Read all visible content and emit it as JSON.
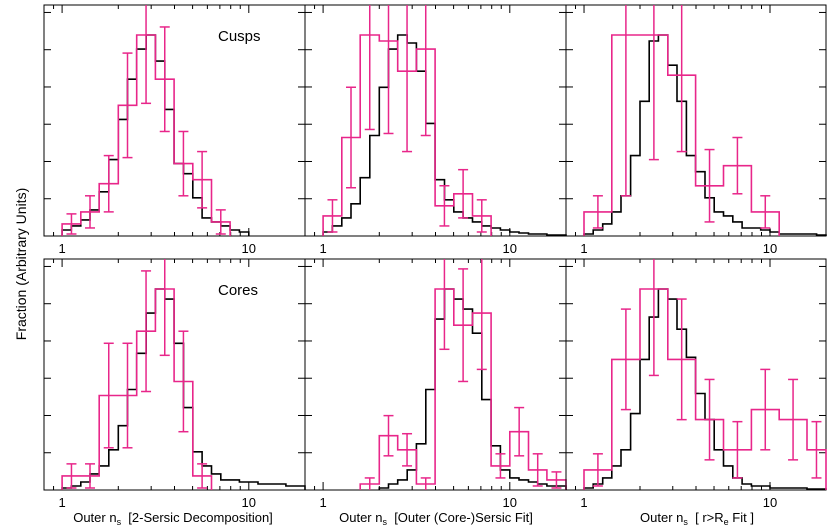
{
  "figure": {
    "ylabel": "Fraction (Arbitrary Units)",
    "row_labels": [
      "Cusps",
      "Cores"
    ],
    "xlabels": [
      {
        "prefix": "Outer n",
        "sub": "s",
        "rest": "  [2-Sersic Decomposition]"
      },
      {
        "prefix": "Outer n",
        "sub": "s",
        "rest": "  [Outer (Core-)Sersic Fit]"
      },
      {
        "prefix": "Outer n",
        "sub": "s",
        "rest": "  [ r>R",
        "sub2": "e",
        "rest2": " Fit ]"
      }
    ]
  },
  "colors": {
    "model": "#000000",
    "observed": "#e8268a"
  },
  "chart_data": [
    {
      "type": "histogram",
      "panel": "cusps-2sersic",
      "label": "Cusps",
      "xscale": "log",
      "xlim": [
        0.8,
        20
      ],
      "ylim": [
        0,
        1
      ],
      "xticks": [
        {
          "value": 1,
          "label": "1"
        },
        {
          "value": 10,
          "label": "10"
        }
      ],
      "series": [
        {
          "name": "model",
          "edges": [
            1.0,
            1.12,
            1.26,
            1.41,
            1.58,
            1.78,
            2.0,
            2.24,
            2.51,
            2.82,
            3.16,
            3.55,
            3.98,
            4.47,
            5.01,
            5.62,
            6.31,
            7.08,
            7.94,
            8.91,
            10.0
          ],
          "values": [
            0.03,
            0.05,
            0.08,
            0.13,
            0.22,
            0.38,
            0.58,
            0.78,
            0.93,
            1.0,
            0.87,
            0.63,
            0.36,
            0.31,
            0.19,
            0.09,
            0.07,
            0.05,
            0.03,
            0.02
          ]
        },
        {
          "name": "observed",
          "edges": [
            1.0,
            1.26,
            1.58,
            2.0,
            2.51,
            3.16,
            3.98,
            5.01,
            6.31,
            7.94
          ],
          "values": [
            0.06,
            0.12,
            0.26,
            0.65,
            1.0,
            0.78,
            0.36,
            0.28,
            0.07
          ],
          "errors": [
            0.05,
            0.08,
            0.14,
            0.26,
            0.34,
            0.26,
            0.16,
            0.14,
            0.06
          ]
        }
      ]
    },
    {
      "type": "histogram",
      "panel": "cusps-outer",
      "label": "",
      "xscale": "log",
      "xlim": [
        0.8,
        20
      ],
      "ylim": [
        0,
        1
      ],
      "xticks": [
        {
          "value": 1,
          "label": "1"
        },
        {
          "value": 10,
          "label": "10"
        }
      ],
      "series": [
        {
          "name": "model",
          "edges": [
            1.0,
            1.12,
            1.26,
            1.41,
            1.58,
            1.78,
            2.0,
            2.24,
            2.51,
            2.82,
            3.16,
            3.55,
            3.98,
            4.47,
            5.01,
            5.62,
            6.31,
            7.08,
            7.94,
            8.91,
            10.0,
            11.2,
            12.6,
            14.1,
            15.8,
            17.8,
            20.0
          ],
          "values": [
            0.02,
            0.05,
            0.09,
            0.16,
            0.29,
            0.5,
            0.74,
            0.93,
            1.0,
            0.96,
            0.82,
            0.56,
            0.28,
            0.18,
            0.12,
            0.09,
            0.07,
            0.05,
            0.04,
            0.03,
            0.02,
            0.015,
            0.01,
            0.01,
            0.005,
            0.005
          ]
        },
        {
          "name": "observed",
          "edges": [
            1.0,
            1.26,
            1.58,
            2.0,
            2.51,
            3.16,
            3.98,
            5.01,
            6.31,
            7.94
          ],
          "values": [
            0.1,
            0.49,
            1.0,
            0.97,
            0.82,
            0.93,
            0.15,
            0.21,
            0.1
          ],
          "errors": [
            0.08,
            0.25,
            0.47,
            0.46,
            0.4,
            0.43,
            0.1,
            0.12,
            0.08
          ]
        }
      ]
    },
    {
      "type": "histogram",
      "panel": "cusps-r-re",
      "label": "",
      "xscale": "log",
      "xlim": [
        0.8,
        20
      ],
      "ylim": [
        0,
        1
      ],
      "xticks": [
        {
          "value": 1,
          "label": "1"
        },
        {
          "value": 10,
          "label": "10"
        }
      ],
      "series": [
        {
          "name": "model",
          "edges": [
            1.0,
            1.12,
            1.26,
            1.41,
            1.58,
            1.78,
            2.0,
            2.24,
            2.51,
            2.82,
            3.16,
            3.55,
            3.98,
            4.47,
            5.01,
            5.62,
            6.31,
            7.08,
            7.94,
            8.91,
            10.0,
            11.2,
            12.6,
            14.1,
            15.8,
            17.8,
            20.0
          ],
          "values": [
            0.01,
            0.03,
            0.06,
            0.12,
            0.2,
            0.4,
            0.67,
            0.97,
            1.0,
            0.85,
            0.67,
            0.4,
            0.32,
            0.19,
            0.12,
            0.1,
            0.07,
            0.04,
            0.04,
            0.03,
            0.02,
            0.01,
            0.01,
            0.01,
            0.01,
            0.005
          ]
        },
        {
          "name": "observed",
          "edges": [
            1.0,
            1.41,
            2.0,
            2.82,
            3.98,
            5.62,
            7.94,
            11.2
          ],
          "values": [
            0.12,
            1.0,
            1.0,
            0.8,
            0.25,
            0.35,
            0.12
          ],
          "errors": [
            0.08,
            0.8,
            0.62,
            0.38,
            0.18,
            0.14,
            0.08
          ]
        }
      ]
    },
    {
      "type": "histogram",
      "panel": "cores-2sersic",
      "label": "Cores",
      "xscale": "log",
      "xlim": [
        0.8,
        20
      ],
      "ylim": [
        0,
        1
      ],
      "xticks": [
        {
          "value": 1,
          "label": "1"
        },
        {
          "value": 10,
          "label": "10"
        }
      ],
      "series": [
        {
          "name": "model",
          "edges": [
            1.0,
            1.12,
            1.26,
            1.41,
            1.58,
            1.78,
            2.0,
            2.24,
            2.51,
            2.82,
            3.16,
            3.55,
            3.98,
            4.47,
            5.01,
            5.62,
            6.31,
            7.08,
            7.94,
            8.91,
            10.0,
            11.2,
            12.6,
            14.1,
            15.8,
            17.8,
            20.0
          ],
          "values": [
            0.01,
            0.02,
            0.04,
            0.08,
            0.12,
            0.2,
            0.32,
            0.5,
            0.68,
            0.88,
            1.0,
            0.95,
            0.73,
            0.41,
            0.19,
            0.12,
            0.08,
            0.05,
            0.05,
            0.04,
            0.04,
            0.03,
            0.03,
            0.03,
            0.02,
            0.02
          ]
        },
        {
          "name": "observed",
          "edges": [
            1.0,
            1.26,
            1.58,
            2.0,
            2.51,
            3.16,
            3.98,
            5.01,
            6.31
          ],
          "values": [
            0.07,
            0.07,
            0.47,
            0.47,
            0.79,
            1.0,
            0.54,
            0.07
          ],
          "errors": [
            0.06,
            0.06,
            0.26,
            0.26,
            0.3,
            0.33,
            0.25,
            0.06
          ]
        }
      ]
    },
    {
      "type": "histogram",
      "panel": "cores-outer",
      "label": "",
      "xscale": "log",
      "xlim": [
        0.8,
        20
      ],
      "ylim": [
        0,
        1
      ],
      "xticks": [
        {
          "value": 1,
          "label": "1"
        },
        {
          "value": 10,
          "label": "10"
        }
      ],
      "series": [
        {
          "name": "model",
          "edges": [
            2.0,
            2.24,
            2.51,
            2.82,
            3.16,
            3.55,
            3.98,
            4.47,
            5.01,
            5.62,
            6.31,
            7.08,
            7.94,
            8.91,
            10.0,
            11.2,
            12.6,
            14.1,
            15.8,
            17.8,
            20.0
          ],
          "values": [
            0.01,
            0.03,
            0.05,
            0.1,
            0.23,
            0.5,
            0.85,
            1.0,
            0.95,
            0.9,
            0.78,
            0.45,
            0.22,
            0.1,
            0.06,
            0.05,
            0.04,
            0.03,
            0.02,
            0.02
          ]
        },
        {
          "name": "observed",
          "edges": [
            1.58,
            2.0,
            2.51,
            3.16,
            3.98,
            5.01,
            6.31,
            7.94,
            10.0,
            12.6,
            15.8,
            20.0
          ],
          "values": [
            0.03,
            0.27,
            0.2,
            0.03,
            1.0,
            0.82,
            0.88,
            0.12,
            0.29,
            0.1,
            0.05
          ],
          "errors": [
            0.03,
            0.1,
            0.08,
            0.03,
            0.3,
            0.28,
            0.28,
            0.06,
            0.12,
            0.08,
            0.04
          ]
        }
      ]
    },
    {
      "type": "histogram",
      "panel": "cores-r-re",
      "label": "",
      "xscale": "log",
      "xlim": [
        0.8,
        20
      ],
      "ylim": [
        0,
        1
      ],
      "xticks": [
        {
          "value": 1,
          "label": "1"
        },
        {
          "value": 10,
          "label": "10"
        }
      ],
      "series": [
        {
          "name": "model",
          "edges": [
            1.0,
            1.12,
            1.26,
            1.41,
            1.58,
            1.78,
            2.0,
            2.24,
            2.51,
            2.82,
            3.16,
            3.55,
            3.98,
            4.47,
            5.01,
            5.62,
            6.31,
            7.08,
            7.94,
            8.91,
            10.0,
            11.2,
            12.6,
            14.1,
            15.8,
            17.8,
            20.0
          ],
          "values": [
            0.01,
            0.03,
            0.06,
            0.12,
            0.2,
            0.38,
            0.65,
            0.86,
            1.0,
            0.95,
            0.8,
            0.66,
            0.48,
            0.35,
            0.2,
            0.12,
            0.06,
            0.03,
            0.02,
            0.02,
            0.01,
            0.01,
            0.01,
            0.01,
            0.005,
            0.005
          ]
        },
        {
          "name": "observed",
          "edges": [
            1.0,
            1.41,
            2.0,
            2.82,
            3.98,
            5.62,
            7.94,
            11.2,
            15.8,
            20.0
          ],
          "values": [
            0.1,
            0.65,
            1.0,
            0.65,
            0.35,
            0.2,
            0.4,
            0.35,
            0.2
          ],
          "errors": [
            0.08,
            0.25,
            0.43,
            0.3,
            0.2,
            0.14,
            0.2,
            0.2,
            0.14
          ]
        }
      ]
    }
  ]
}
